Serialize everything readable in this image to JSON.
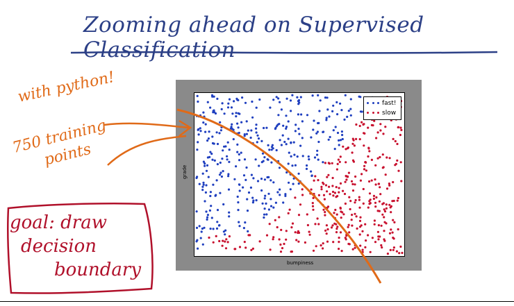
{
  "title": "Zooming ahead on Supervised Classification",
  "annotations": {
    "with_python": "with python!",
    "training_points_1": "750 training",
    "training_points_2": "points",
    "goal_1": "goal: draw",
    "goal_2": "decision",
    "goal_3": "boundary"
  },
  "colors": {
    "title_ink": "#2b3f86",
    "orange_ink": "#e06a18",
    "red_ink": "#b0102a",
    "fast": "#1f3fbf",
    "slow": "#c8102e"
  },
  "chart_data": {
    "type": "scatter",
    "xlabel": "bumpiness",
    "ylabel": "grade",
    "xlim": [
      0,
      1
    ],
    "ylim": [
      0,
      1
    ],
    "legend_position": "top-right",
    "series": [
      {
        "name": "fast!",
        "color": "#1f3fbf"
      },
      {
        "name": "slow",
        "color": "#c8102e"
      }
    ],
    "n_points": 750
  }
}
